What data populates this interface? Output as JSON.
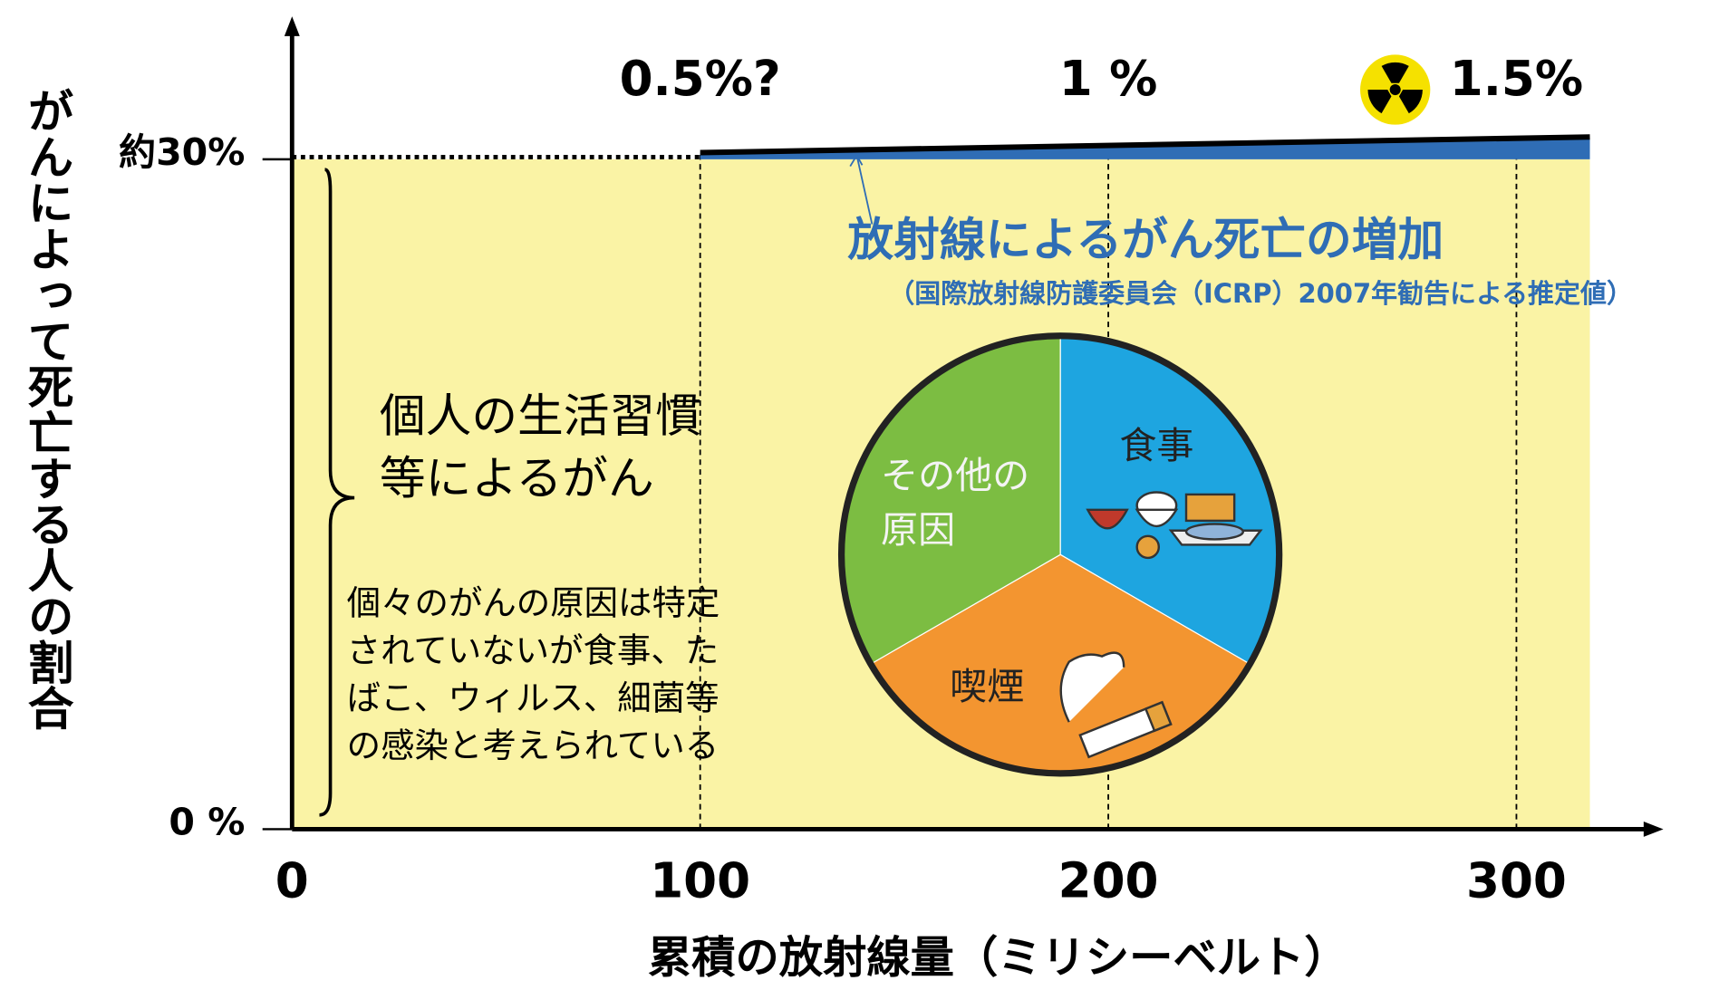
{
  "chart_data": [
    {
      "type": "area",
      "xlabel": "累積の放射線量（ミリシーベルト）",
      "ylabel": "がんによって死亡する人の割合",
      "x": [
        0,
        100,
        318
      ],
      "series": [
        {
          "name": "個人の生活習慣等によるがん",
          "color": "#faf3a5",
          "values": [
            30,
            30,
            30
          ]
        },
        {
          "name": "放射線によるがん死亡の増加",
          "color": "#2f6db5",
          "values": [
            null,
            0.3,
            1.0
          ]
        }
      ],
      "xlim": [
        0,
        336
      ],
      "ylim": [
        0,
        36.4
      ],
      "xticks": [
        0,
        100,
        200,
        300
      ],
      "yticks": [
        {
          "value": 0,
          "label": "0 %"
        },
        {
          "value": 30,
          "label": "約30%"
        }
      ],
      "grid": true,
      "annotations": [
        {
          "text": "0.5%?",
          "x": 100
        },
        {
          "text": "1 %",
          "x": 200
        },
        {
          "text": "1.5%",
          "x": 300
        }
      ],
      "series_note": "（国際放射線防護委員会（ICRP）2007年勧告による推定値）",
      "note": [
        "個々のがんの原因は特定",
        "されていないが食事、た",
        "ばこ、ウィルス、細菌等",
        "の感染と考えられている"
      ]
    },
    {
      "type": "pie",
      "categories": [
        "食事",
        "喫煙",
        "その他の原因"
      ],
      "values": [
        33.3,
        33.3,
        33.3
      ],
      "colors": [
        "#1ea5e0",
        "#f39530",
        "#7cbd42"
      ]
    }
  ]
}
